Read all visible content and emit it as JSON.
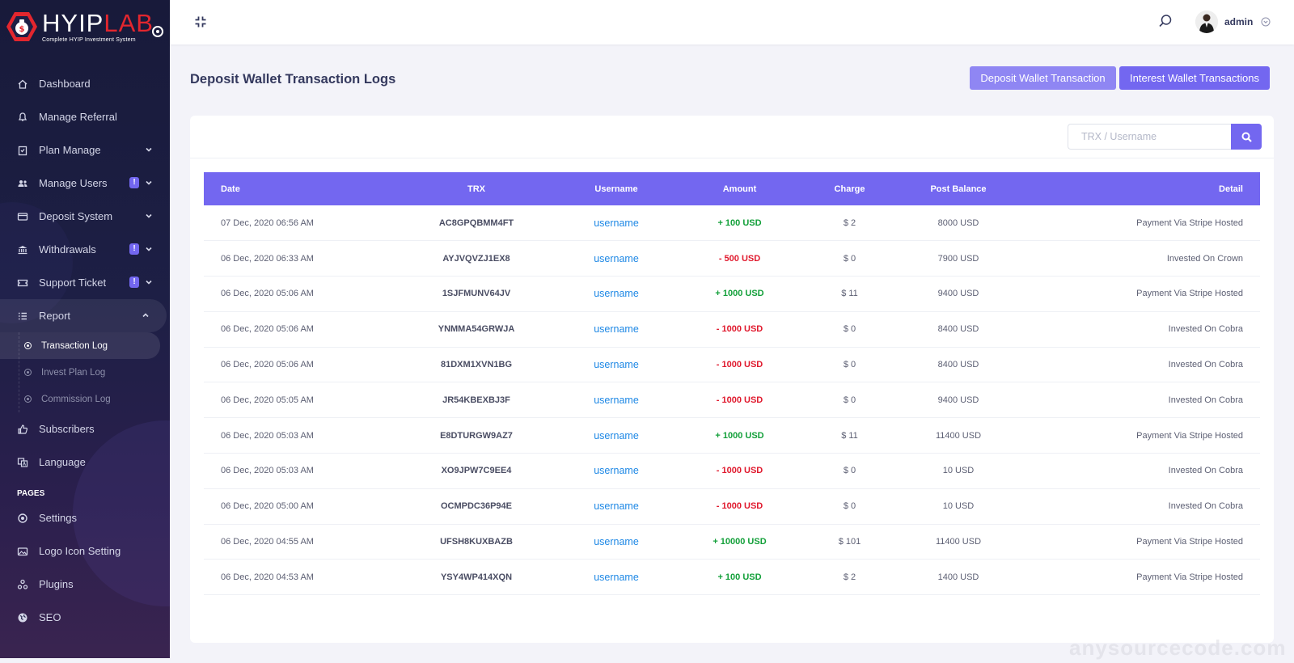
{
  "brand": {
    "name_part1": "HYIP",
    "name_part2": "LAB",
    "tagline": "Complete HYIP Investment System"
  },
  "sidebar": {
    "items": [
      {
        "label": "Dashboard",
        "icon": "home-icon"
      },
      {
        "label": "Manage Referral",
        "icon": "referral-icon"
      },
      {
        "label": "Plan Manage",
        "icon": "clipboard-icon"
      },
      {
        "label": "Manage Users",
        "icon": "users-icon",
        "badge": "!"
      },
      {
        "label": "Deposit System",
        "icon": "card-icon"
      },
      {
        "label": "Withdrawals",
        "icon": "bank-icon",
        "badge": "!"
      },
      {
        "label": "Support Ticket",
        "icon": "ticket-icon",
        "badge": "!"
      },
      {
        "label": "Report",
        "icon": "list-icon"
      }
    ],
    "report_sub": [
      "Transaction Log",
      "Invest Plan Log",
      "Commission Log"
    ],
    "items2": [
      {
        "label": "Subscribers",
        "icon": "thumbs-up-icon"
      },
      {
        "label": "Language",
        "icon": "language-icon"
      }
    ],
    "section_pages": "PAGES",
    "pages": [
      {
        "label": "Settings",
        "icon": "settings-icon"
      },
      {
        "label": "Logo Icon Setting",
        "icon": "image-icon"
      },
      {
        "label": "Plugins",
        "icon": "plugins-icon"
      },
      {
        "label": "SEO",
        "icon": "globe-icon"
      }
    ]
  },
  "header": {
    "admin_name": "admin"
  },
  "page": {
    "title": "Deposit Wallet Transaction Logs",
    "btn_deposit": "Deposit Wallet Transaction",
    "btn_interest": "Interest Wallet Transactions",
    "search_placeholder": "TRX / Username"
  },
  "table": {
    "headers": [
      "Date",
      "TRX",
      "Username",
      "Amount",
      "Charge",
      "Post Balance",
      "Detail"
    ],
    "rows": [
      {
        "date": "07 Dec, 2020 06:56 AM",
        "trx": "AC8GPQBMM4FT",
        "user": "username",
        "amount": "+ 100 USD",
        "sign": "plus",
        "charge": "$ 2",
        "post": "8000 USD",
        "detail": "Payment Via Stripe Hosted"
      },
      {
        "date": "06 Dec, 2020 06:33 AM",
        "trx": "AYJVQVZJ1EX8",
        "user": "username",
        "amount": "- 500 USD",
        "sign": "minus",
        "charge": "$ 0",
        "post": "7900 USD",
        "detail": "Invested On Crown"
      },
      {
        "date": "06 Dec, 2020 05:06 AM",
        "trx": "1SJFMUNV64JV",
        "user": "username",
        "amount": "+ 1000 USD",
        "sign": "plus",
        "charge": "$ 11",
        "post": "9400 USD",
        "detail": "Payment Via Stripe Hosted"
      },
      {
        "date": "06 Dec, 2020 05:06 AM",
        "trx": "YNMMA54GRWJA",
        "user": "username",
        "amount": "- 1000 USD",
        "sign": "minus",
        "charge": "$ 0",
        "post": "8400 USD",
        "detail": "Invested On Cobra"
      },
      {
        "date": "06 Dec, 2020 05:06 AM",
        "trx": "81DXM1XVN1BG",
        "user": "username",
        "amount": "- 1000 USD",
        "sign": "minus",
        "charge": "$ 0",
        "post": "8400 USD",
        "detail": "Invested On Cobra"
      },
      {
        "date": "06 Dec, 2020 05:05 AM",
        "trx": "JR54KBEXBJ3F",
        "user": "username",
        "amount": "- 1000 USD",
        "sign": "minus",
        "charge": "$ 0",
        "post": "9400 USD",
        "detail": "Invested On Cobra"
      },
      {
        "date": "06 Dec, 2020 05:03 AM",
        "trx": "E8DTURGW9AZ7",
        "user": "username",
        "amount": "+ 1000 USD",
        "sign": "plus",
        "charge": "$ 11",
        "post": "11400 USD",
        "detail": "Payment Via Stripe Hosted"
      },
      {
        "date": "06 Dec, 2020 05:03 AM",
        "trx": "XO9JPW7C9EE4",
        "user": "username",
        "amount": "- 1000 USD",
        "sign": "minus",
        "charge": "$ 0",
        "post": "10 USD",
        "detail": "Invested On Cobra"
      },
      {
        "date": "06 Dec, 2020 05:00 AM",
        "trx": "OCMPDC36P94E",
        "user": "username",
        "amount": "- 1000 USD",
        "sign": "minus",
        "charge": "$ 0",
        "post": "10 USD",
        "detail": "Invested On Cobra"
      },
      {
        "date": "06 Dec, 2020 04:55 AM",
        "trx": "UFSH8KUXBAZB",
        "user": "username",
        "amount": "+ 10000 USD",
        "sign": "plus",
        "charge": "$ 101",
        "post": "11400 USD",
        "detail": "Payment Via Stripe Hosted"
      },
      {
        "date": "06 Dec, 2020 04:53 AM",
        "trx": "YSY4WP414XQN",
        "user": "username",
        "amount": "+ 100 USD",
        "sign": "plus",
        "charge": "$ 2",
        "post": "1400 USD",
        "detail": "Payment Via Stripe Hosted"
      }
    ]
  },
  "watermark": "anysourcecode.com",
  "colors": {
    "accent": "#7367f0",
    "accent_light": "#8f86f3",
    "positive": "#13a03a",
    "negative": "#e0192d",
    "link": "#1e88e5",
    "sidebar_bg": "#1d1f45",
    "brand_red": "#e3262e"
  }
}
